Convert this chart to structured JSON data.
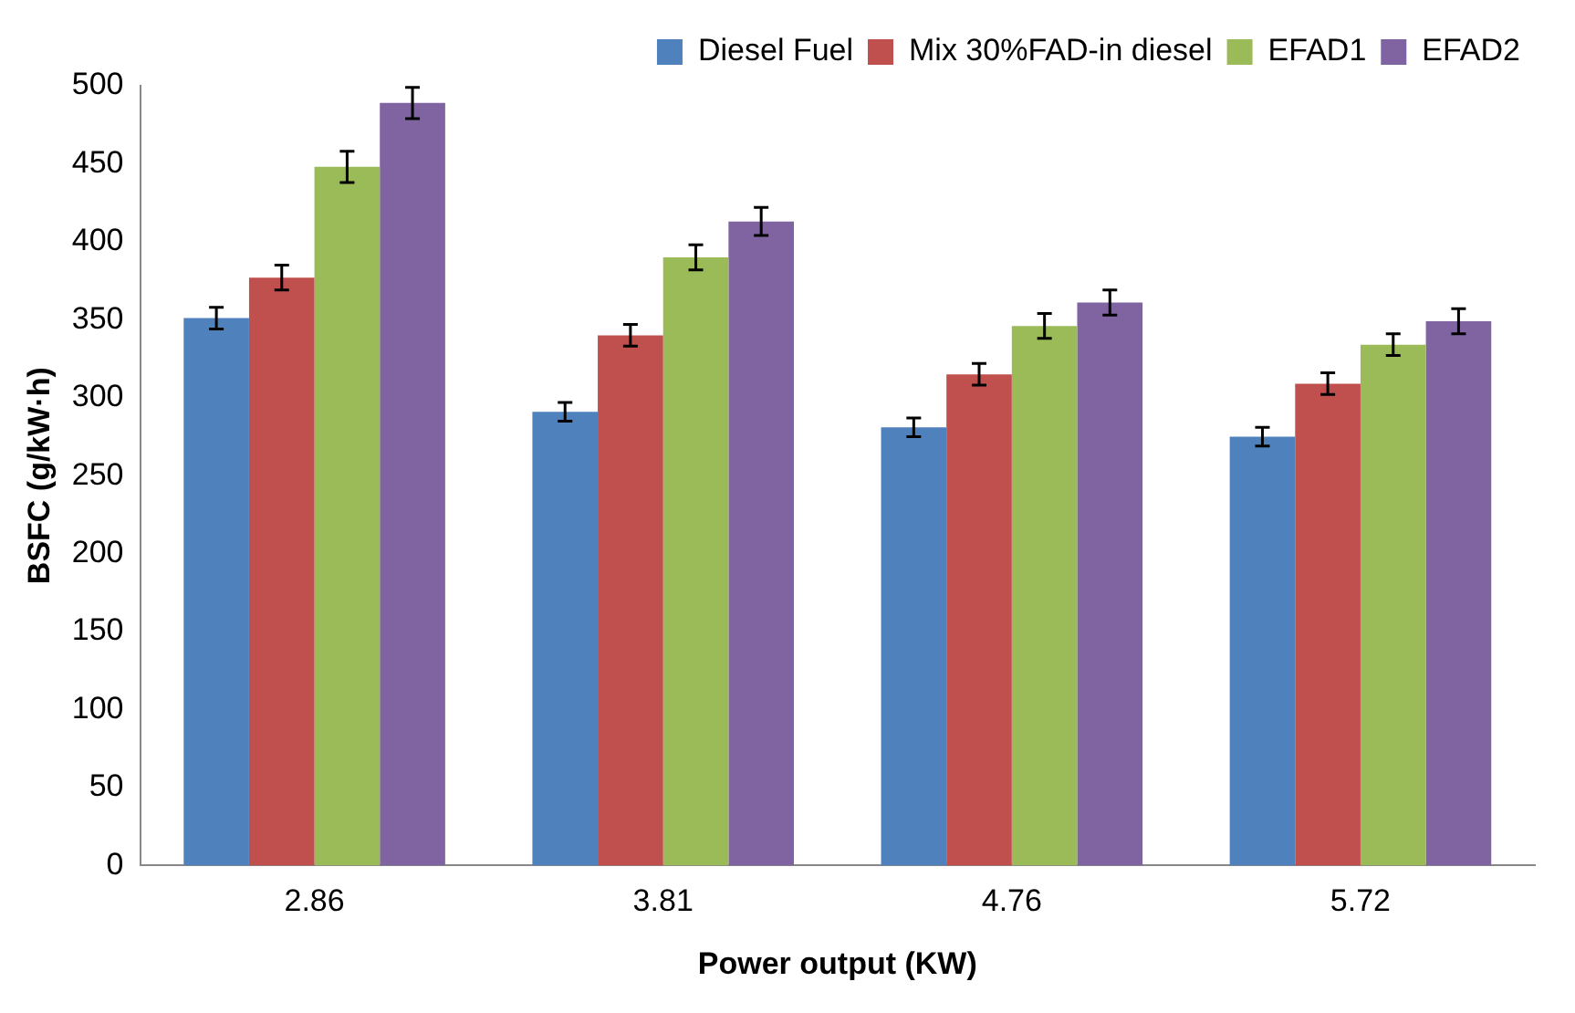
{
  "chart_data": {
    "type": "bar",
    "xlabel": "Power output (KW)",
    "ylabel": "BSFC (g/kW·h)",
    "categories": [
      "2.86",
      "3.81",
      "4.76",
      "5.72"
    ],
    "series": [
      {
        "name": "Diesel Fuel",
        "color": "#4f81bd",
        "values": [
          351,
          291,
          281,
          275
        ],
        "errors": [
          7,
          6,
          6,
          6
        ]
      },
      {
        "name": "Mix 30%FAD-in diesel",
        "color": "#c0504d",
        "values": [
          377,
          340,
          315,
          309
        ],
        "errors": [
          8,
          7,
          7,
          7
        ]
      },
      {
        "name": "EFAD1",
        "color": "#9bbb59",
        "values": [
          448,
          390,
          346,
          334
        ],
        "errors": [
          10,
          8,
          8,
          7
        ]
      },
      {
        "name": "EFAD2",
        "color": "#8064a2",
        "values": [
          489,
          413,
          361,
          349
        ],
        "errors": [
          10,
          9,
          8,
          8
        ]
      }
    ],
    "ylim": [
      0,
      500
    ],
    "yticks": [
      0,
      50,
      100,
      150,
      200,
      250,
      300,
      350,
      400,
      450,
      500
    ],
    "grid": false,
    "legend": "top right"
  }
}
